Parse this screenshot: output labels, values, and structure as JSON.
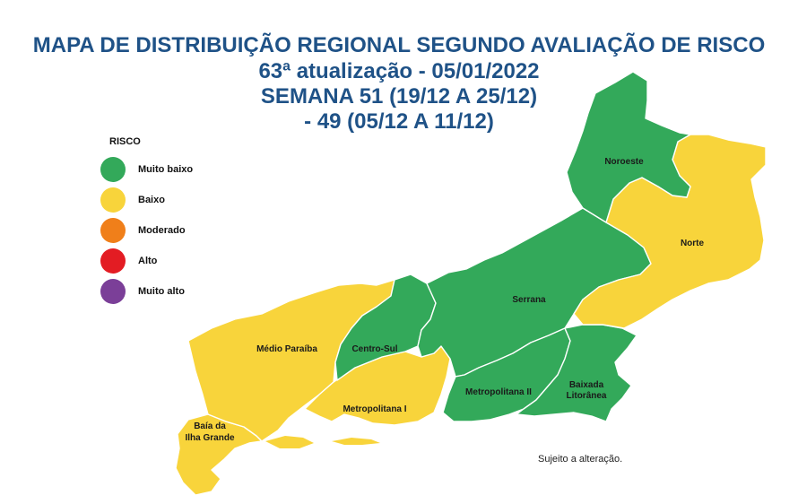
{
  "title": {
    "line1": "MAPA DE DISTRIBUIÇÃO REGIONAL SEGUNDO AVALIAÇÃO DE RISCO",
    "line2": "63ª atualização - 05/01/2022",
    "line3": "SEMANA 51 (19/12 A 25/12)",
    "line4": "- 49 (05/12 A 11/12)"
  },
  "legend": {
    "title": "RISCO",
    "items": [
      {
        "label": "Muito baixo",
        "color": "#33a95a"
      },
      {
        "label": "Baixo",
        "color": "#f8d43b"
      },
      {
        "label": "Moderado",
        "color": "#f07f1a"
      },
      {
        "label": "Alto",
        "color": "#e31c23"
      },
      {
        "label": "Muito alto",
        "color": "#7b3f98"
      }
    ]
  },
  "regions": [
    {
      "name": "Noroeste",
      "risk": "Muito baixo"
    },
    {
      "name": "Norte",
      "risk": "Baixo"
    },
    {
      "name": "Serrana",
      "risk": "Muito baixo"
    },
    {
      "name": "Médio Paraíba",
      "risk": "Baixo"
    },
    {
      "name": "Centro-Sul",
      "risk": "Muito baixo"
    },
    {
      "name": "Metropolitana I",
      "risk": "Baixo"
    },
    {
      "name": "Metropolitana II",
      "risk": "Muito baixo"
    },
    {
      "name": "Baixada Litorânea",
      "label_line1": "Baixada",
      "label_line2": "Litorânea",
      "risk": "Muito baixo"
    },
    {
      "name": "Baía da Ilha Grande",
      "label_line1": "Baía da",
      "label_line2": "Ilha Grande",
      "risk": "Baixo"
    }
  ],
  "note": "Sujeito a alteração."
}
